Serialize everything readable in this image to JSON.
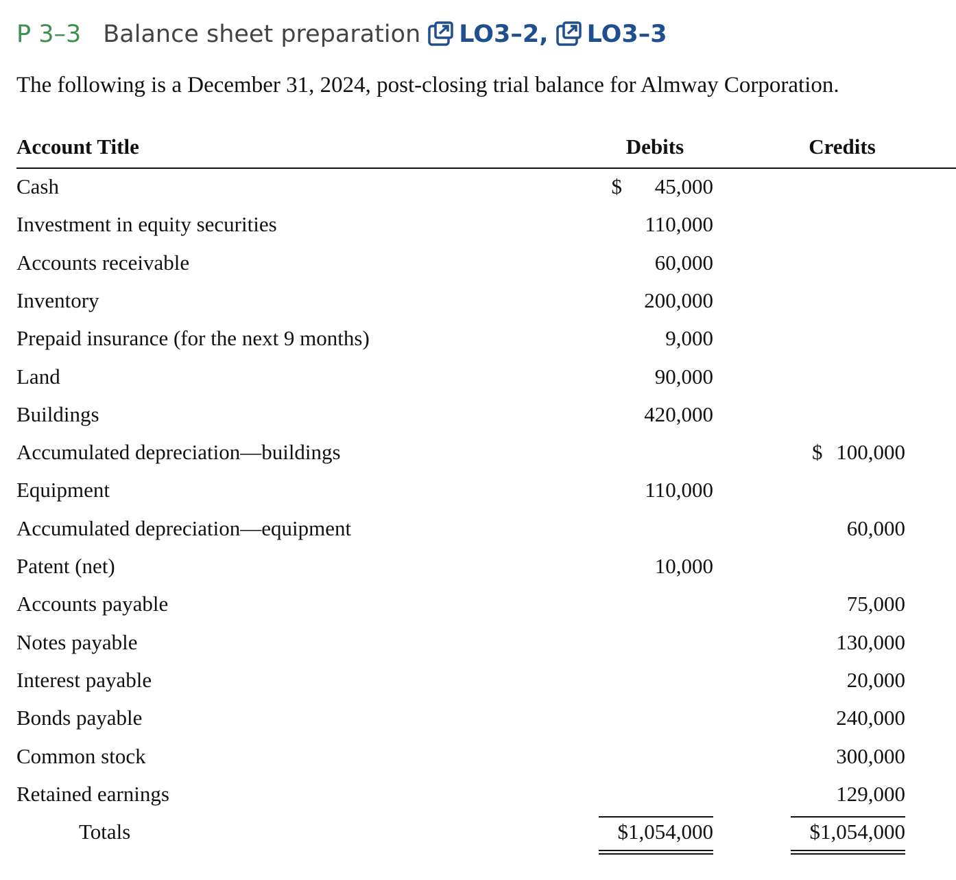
{
  "header": {
    "number": "P 3–3",
    "title": "Balance sheet preparation",
    "links": [
      "LO3–2,",
      "LO3–3"
    ]
  },
  "intro": "The following is a December 31, 2024, post-closing trial balance for Almway Corporation.",
  "table": {
    "columns": [
      "Account Title",
      "Debits",
      "Credits"
    ],
    "rows": [
      [
        "Cash",
        "$ 45,000",
        null
      ],
      [
        "Investment in equity securities",
        "110,000",
        null
      ],
      [
        "Accounts receivable",
        "60,000",
        null
      ],
      [
        "Inventory",
        "200,000",
        null
      ],
      [
        "Prepaid insurance (for the next 9 months)",
        "9,000",
        null
      ],
      [
        "Land",
        "90,000",
        null
      ],
      [
        "Buildings",
        "420,000",
        null
      ],
      [
        "Accumulated depreciation—buildings",
        null,
        "$ 100,000"
      ],
      [
        "Equipment",
        "110,000",
        null
      ],
      [
        "Accumulated depreciation—equipment",
        null,
        "60,000"
      ],
      [
        "Patent (net)",
        "10,000",
        null
      ],
      [
        "Accounts payable",
        null,
        "75,000"
      ],
      [
        "Notes payable",
        null,
        "130,000"
      ],
      [
        "Interest payable",
        null,
        "20,000"
      ],
      [
        "Bonds payable",
        null,
        "240,000"
      ],
      [
        "Common stock",
        null,
        "300,000"
      ],
      [
        "Retained earnings",
        null,
        "129,000"
      ]
    ],
    "totals": [
      "Totals",
      "$1,054,000",
      "$1,054,000"
    ]
  }
}
